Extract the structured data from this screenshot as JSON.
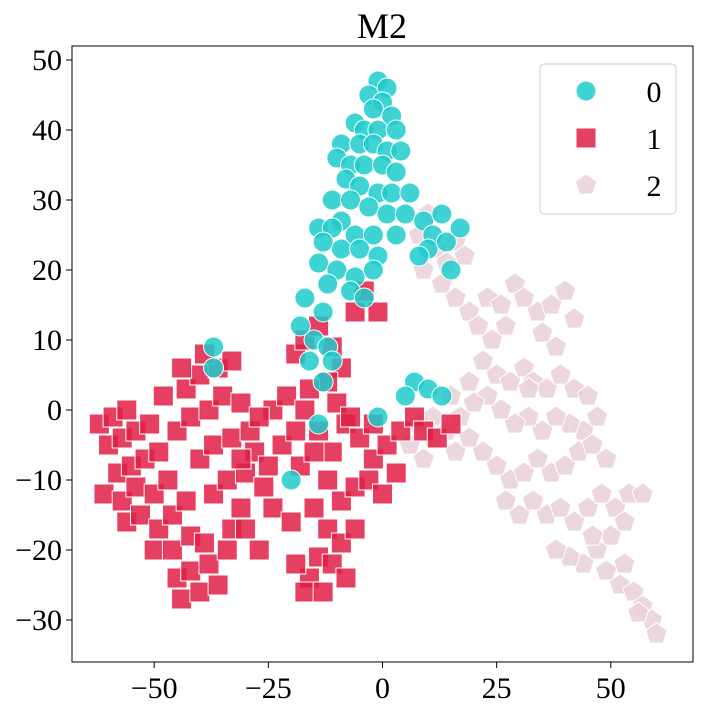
{
  "chart_data": {
    "type": "scatter",
    "title": "M2",
    "xlabel": "",
    "ylabel": "",
    "xlim": [
      -68,
      68
    ],
    "ylim": [
      -36,
      52
    ],
    "x_ticks": [
      -50,
      -25,
      0,
      25,
      50
    ],
    "x_tick_labels": [
      "−50",
      "−25",
      "0",
      "25",
      "50"
    ],
    "y_ticks": [
      -30,
      -20,
      -10,
      0,
      10,
      20,
      30,
      40,
      50
    ],
    "y_tick_labels": [
      "−30",
      "−20",
      "−10",
      "0",
      "10",
      "20",
      "30",
      "40",
      "50"
    ],
    "grid": false,
    "legend_position": "top-right",
    "series": [
      {
        "name": "0",
        "marker": "circle",
        "color": "#1ecbcb",
        "points": [
          [
            -1,
            47
          ],
          [
            1,
            46
          ],
          [
            -3,
            45
          ],
          [
            0,
            44
          ],
          [
            -2,
            43
          ],
          [
            2,
            42
          ],
          [
            -6,
            41
          ],
          [
            -4,
            40
          ],
          [
            -1,
            40
          ],
          [
            3,
            40
          ],
          [
            -9,
            38
          ],
          [
            -5,
            38
          ],
          [
            -2,
            38
          ],
          [
            1,
            37
          ],
          [
            4,
            37
          ],
          [
            -10,
            36
          ],
          [
            -7,
            35
          ],
          [
            -4,
            35
          ],
          [
            0,
            35
          ],
          [
            3,
            34
          ],
          [
            -8,
            33
          ],
          [
            -5,
            32
          ],
          [
            -1,
            31
          ],
          [
            2,
            31
          ],
          [
            6,
            31
          ],
          [
            -11,
            30
          ],
          [
            -7,
            30
          ],
          [
            -3,
            29
          ],
          [
            1,
            28
          ],
          [
            5,
            28
          ],
          [
            -9,
            27
          ],
          [
            -14,
            26
          ],
          [
            -11,
            26
          ],
          [
            -6,
            25
          ],
          [
            -2,
            25
          ],
          [
            3,
            25
          ],
          [
            -13,
            24
          ],
          [
            -9,
            23
          ],
          [
            -5,
            23
          ],
          [
            -1,
            22
          ],
          [
            -14,
            21
          ],
          [
            -10,
            20
          ],
          [
            -6,
            19
          ],
          [
            -2,
            20
          ],
          [
            -12,
            18
          ],
          [
            -7,
            17
          ],
          [
            -4,
            16
          ],
          [
            -17,
            16
          ],
          [
            -13,
            14
          ],
          [
            -18,
            12
          ],
          [
            -15,
            10
          ],
          [
            -12,
            9
          ],
          [
            -16,
            7
          ],
          [
            -11,
            7
          ],
          [
            -13,
            4
          ],
          [
            -37,
            9
          ],
          [
            -37,
            6
          ],
          [
            9,
            27
          ],
          [
            13,
            28
          ],
          [
            11,
            25
          ],
          [
            10,
            23
          ],
          [
            14,
            24
          ],
          [
            17,
            26
          ],
          [
            8,
            22
          ],
          [
            15,
            20
          ],
          [
            7,
            4
          ],
          [
            10,
            3
          ],
          [
            5,
            2
          ],
          [
            13,
            2
          ],
          [
            -1,
            -1
          ],
          [
            -20,
            -10
          ],
          [
            -14,
            -2
          ]
        ]
      },
      {
        "name": "1",
        "marker": "square",
        "color": "#e11d45",
        "points": [
          [
            -62,
            -2
          ],
          [
            -59,
            -1
          ],
          [
            -56,
            0
          ],
          [
            -60,
            -5
          ],
          [
            -57,
            -4
          ],
          [
            -54,
            -3
          ],
          [
            -51,
            -2
          ],
          [
            -58,
            -9
          ],
          [
            -55,
            -8
          ],
          [
            -52,
            -7
          ],
          [
            -49,
            -6
          ],
          [
            -61,
            -12
          ],
          [
            -57,
            -13
          ],
          [
            -54,
            -11
          ],
          [
            -50,
            -12
          ],
          [
            -47,
            -10
          ],
          [
            -56,
            -16
          ],
          [
            -53,
            -15
          ],
          [
            -49,
            -17
          ],
          [
            -46,
            -15
          ],
          [
            -43,
            -13
          ],
          [
            -50,
            -20
          ],
          [
            -46,
            -20
          ],
          [
            -42,
            -18
          ],
          [
            -39,
            -19
          ],
          [
            -45,
            -24
          ],
          [
            -42,
            -23
          ],
          [
            -38,
            -22
          ],
          [
            -44,
            -27
          ],
          [
            -40,
            -26
          ],
          [
            -36,
            -25
          ],
          [
            -34,
            -20
          ],
          [
            -33,
            -17
          ],
          [
            -31,
            -14
          ],
          [
            -37,
            -12
          ],
          [
            -34,
            -10
          ],
          [
            -30,
            -9
          ],
          [
            -40,
            -7
          ],
          [
            -37,
            -5
          ],
          [
            -33,
            -4
          ],
          [
            -29,
            -3
          ],
          [
            -45,
            -3
          ],
          [
            -42,
            -1
          ],
          [
            -38,
            0
          ],
          [
            -35,
            2
          ],
          [
            -31,
            1
          ],
          [
            -43,
            3
          ],
          [
            -40,
            5
          ],
          [
            -36,
            6
          ],
          [
            -33,
            7
          ],
          [
            -39,
            8
          ],
          [
            -44,
            6
          ],
          [
            -28,
            -6
          ],
          [
            -26,
            -11
          ],
          [
            -24,
            -14
          ],
          [
            -30,
            -17
          ],
          [
            -27,
            -20
          ],
          [
            -25,
            -8
          ],
          [
            -22,
            -5
          ],
          [
            -19,
            -3
          ],
          [
            -24,
            0
          ],
          [
            -21,
            2
          ],
          [
            -17,
            0
          ],
          [
            -14,
            -3
          ],
          [
            -11,
            -6
          ],
          [
            -8,
            -2
          ],
          [
            -5,
            -4
          ],
          [
            -2,
            -7
          ],
          [
            1,
            -5
          ],
          [
            4,
            -3
          ],
          [
            7,
            -1
          ],
          [
            -12,
            -10
          ],
          [
            -9,
            -13
          ],
          [
            -6,
            -11
          ],
          [
            -3,
            -10
          ],
          [
            0,
            -12
          ],
          [
            3,
            -9
          ],
          [
            -15,
            -14
          ],
          [
            -12,
            -17
          ],
          [
            -9,
            -19
          ],
          [
            -6,
            -17
          ],
          [
            -14,
            -21
          ],
          [
            -11,
            -22
          ],
          [
            -8,
            -24
          ],
          [
            -16,
            -24
          ],
          [
            -19,
            -22
          ],
          [
            -17,
            -26
          ],
          [
            -13,
            -26
          ],
          [
            -20,
            -16
          ],
          [
            -18,
            -8
          ],
          [
            -15,
            -6
          ],
          [
            -19,
            8
          ],
          [
            -17,
            10
          ],
          [
            -14,
            12
          ],
          [
            -11,
            9
          ],
          [
            -9,
            6
          ],
          [
            -6,
            14
          ],
          [
            -4,
            17
          ],
          [
            -1,
            14
          ],
          [
            -12,
            4
          ],
          [
            -10,
            1
          ],
          [
            -7,
            -1
          ],
          [
            9,
            -3
          ],
          [
            12,
            -4
          ],
          [
            15,
            -2
          ],
          [
            -2,
            -2
          ],
          [
            -16,
            3
          ],
          [
            -27,
            -1
          ],
          [
            -31,
            -7
          ],
          [
            -48,
            2
          ]
        ]
      },
      {
        "name": "2",
        "marker": "pentagon",
        "color": "#ead0d8",
        "points": [
          [
            8,
            25
          ],
          [
            10,
            28
          ],
          [
            12,
            23
          ],
          [
            14,
            21
          ],
          [
            16,
            24
          ],
          [
            18,
            22
          ],
          [
            9,
            20
          ],
          [
            13,
            18
          ],
          [
            16,
            16
          ],
          [
            19,
            14
          ],
          [
            21,
            12
          ],
          [
            23,
            16
          ],
          [
            26,
            15
          ],
          [
            29,
            18
          ],
          [
            31,
            16
          ],
          [
            34,
            14
          ],
          [
            37,
            15
          ],
          [
            40,
            17
          ],
          [
            42,
            13
          ],
          [
            35,
            11
          ],
          [
            38,
            9
          ],
          [
            27,
            12
          ],
          [
            24,
            10
          ],
          [
            22,
            7
          ],
          [
            25,
            5
          ],
          [
            28,
            4
          ],
          [
            31,
            6
          ],
          [
            33,
            4
          ],
          [
            36,
            3
          ],
          [
            39,
            5
          ],
          [
            42,
            3
          ],
          [
            45,
            2
          ],
          [
            47,
            -1
          ],
          [
            44,
            -3
          ],
          [
            41,
            -2
          ],
          [
            38,
            -1
          ],
          [
            35,
            -3
          ],
          [
            32,
            -1
          ],
          [
            29,
            -2
          ],
          [
            26,
            0
          ],
          [
            23,
            2
          ],
          [
            20,
            1
          ],
          [
            17,
            -1
          ],
          [
            14,
            -3
          ],
          [
            11,
            -4
          ],
          [
            8,
            -2
          ],
          [
            6,
            -5
          ],
          [
            9,
            -7
          ],
          [
            16,
            -6
          ],
          [
            19,
            -4
          ],
          [
            22,
            -6
          ],
          [
            25,
            -8
          ],
          [
            28,
            -10
          ],
          [
            31,
            -9
          ],
          [
            34,
            -7
          ],
          [
            37,
            -9
          ],
          [
            40,
            -8
          ],
          [
            43,
            -6
          ],
          [
            46,
            -5
          ],
          [
            49,
            -7
          ],
          [
            27,
            -13
          ],
          [
            30,
            -15
          ],
          [
            33,
            -13
          ],
          [
            36,
            -15
          ],
          [
            39,
            -14
          ],
          [
            42,
            -16
          ],
          [
            45,
            -14
          ],
          [
            48,
            -12
          ],
          [
            51,
            -14
          ],
          [
            54,
            -12
          ],
          [
            57,
            -12
          ],
          [
            53,
            -16
          ],
          [
            50,
            -18
          ],
          [
            47,
            -20
          ],
          [
            44,
            -22
          ],
          [
            41,
            -21
          ],
          [
            38,
            -20
          ],
          [
            49,
            -23
          ],
          [
            52,
            -25
          ],
          [
            55,
            -26
          ],
          [
            57,
            -28
          ],
          [
            59,
            -30
          ],
          [
            60,
            -32
          ],
          [
            56,
            -29
          ],
          [
            53,
            -22
          ],
          [
            46,
            -18
          ],
          [
            32,
            3
          ],
          [
            19,
            4
          ],
          [
            15,
            2
          ],
          [
            11,
            -1
          ]
        ]
      }
    ]
  }
}
